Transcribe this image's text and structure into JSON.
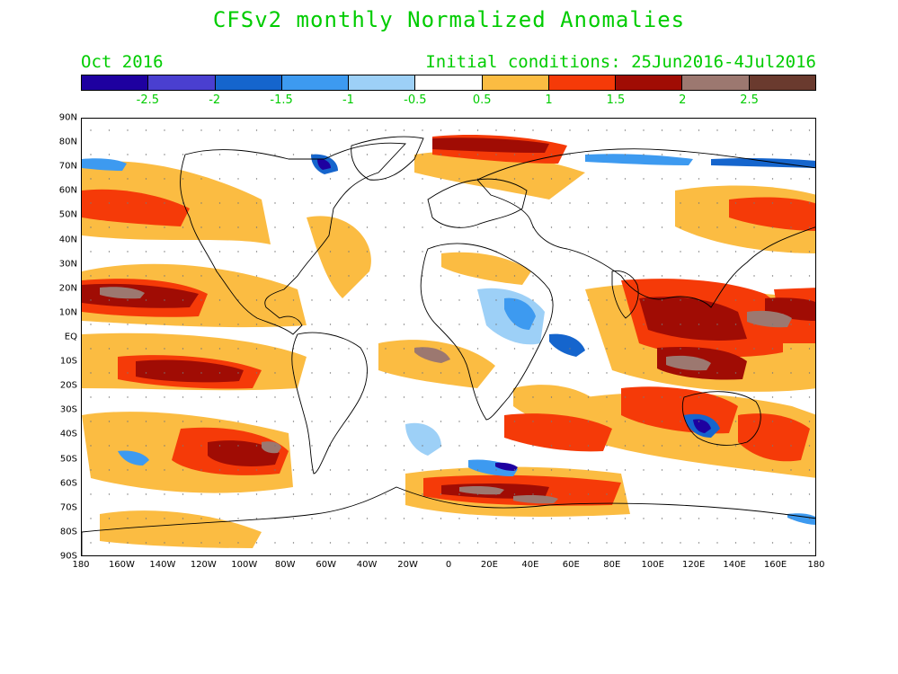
{
  "title": "CFSv2 monthly Normalized Anomalies",
  "forecast_month": "Oct 2016",
  "initial_conditions": "Initial conditions: 25Jun2016-4Jul2016",
  "colorbar": {
    "colors": [
      "#1e00a0",
      "#4a3fd0",
      "#1565cd",
      "#3d9af0",
      "#9dd0f7",
      "#ffffff",
      "#fbbc42",
      "#f53a08",
      "#a00c04",
      "#9c7870",
      "#6a3a2e"
    ],
    "labels": [
      "-2.5",
      "-2",
      "-1.5",
      "-1",
      "-0.5",
      "0.5",
      "1",
      "1.5",
      "2",
      "2.5"
    ]
  },
  "axes": {
    "lat_labels": [
      "90N",
      "80N",
      "70N",
      "60N",
      "50N",
      "40N",
      "30N",
      "20N",
      "10N",
      "EQ",
      "10S",
      "20S",
      "30S",
      "40S",
      "50S",
      "60S",
      "70S",
      "80S",
      "90S"
    ],
    "lon_labels": [
      "180",
      "160W",
      "140W",
      "120W",
      "100W",
      "80W",
      "60W",
      "40W",
      "20W",
      "0",
      "20E",
      "40E",
      "60E",
      "80E",
      "100E",
      "120E",
      "140E",
      "160E",
      "180"
    ]
  }
}
